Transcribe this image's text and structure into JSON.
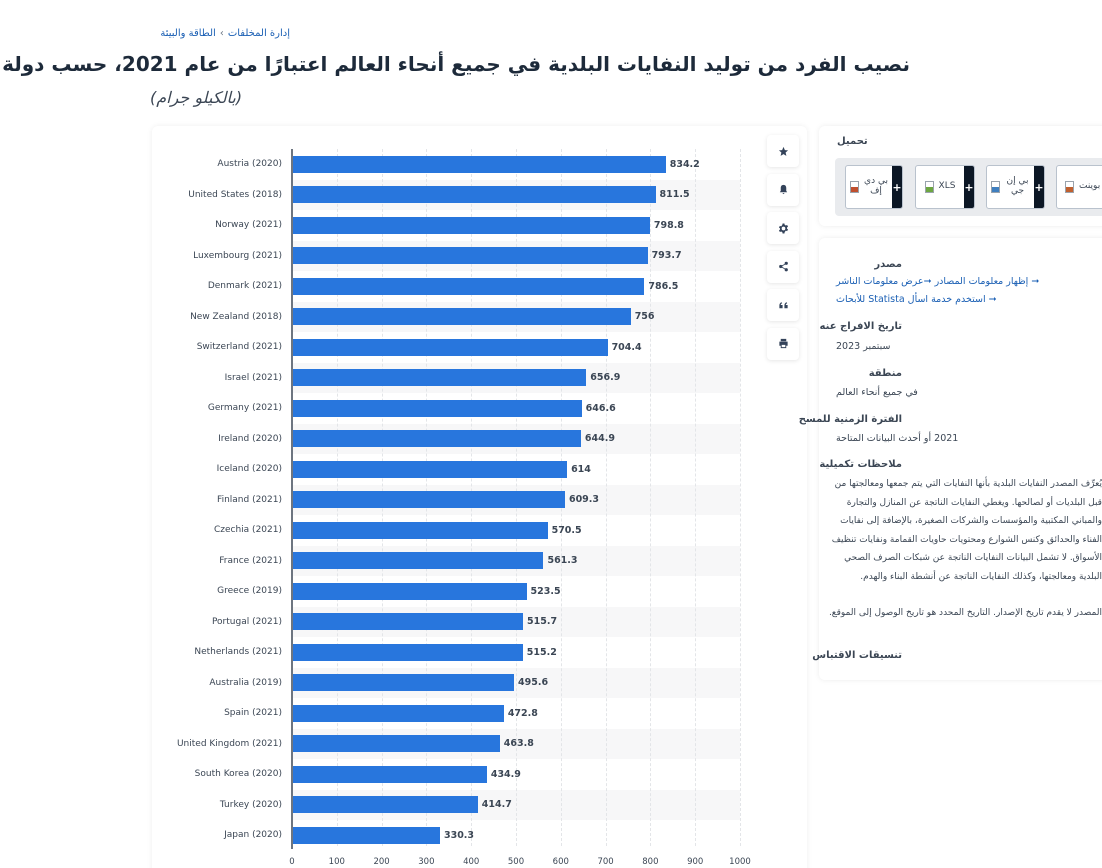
{
  "breadcrumb": {
    "items": [
      "الطاقة والبيئة",
      "إدارة المخلفات"
    ],
    "separator": "›"
  },
  "header": {
    "title": "نصيب الفرد من توليد النفايات البلدية في جميع أنحاء العالم اعتبارًا من عام 2021، حسب دولة مختارة",
    "subtitle": "(بالكيلو جرام)"
  },
  "toolbar": {
    "items": [
      "star-icon",
      "bell-icon",
      "gear-icon",
      "share-icon",
      "quote-icon",
      "print-icon"
    ]
  },
  "download": {
    "title": "تحميل",
    "buttons": [
      {
        "label": "بي دي إف",
        "icon": "pdf-file-icon",
        "color": "#c0502f"
      },
      {
        "label": "XLS",
        "icon": "xls-file-icon",
        "color": "#6da641"
      },
      {
        "label": "بي إن جي",
        "icon": "png-file-icon",
        "color": "#3f7fbf"
      },
      {
        "label": "باور بوينت",
        "icon": "ppt-file-icon",
        "color": "#c0602f"
      }
    ],
    "plus": "+"
  },
  "info": {
    "source_title": "مصدر",
    "links": [
      "عرض معلومات الناشر",
      "إظهار معلومات المصادر",
      "استخدم خدمة اسأل Statista للأبحاث"
    ],
    "arrow": "➞",
    "release_title": "تاريخ الافراج عنه",
    "release_value": "سبتمبر 2023",
    "region_title": "منطقة",
    "region_value": "في جميع أنحاء العالم",
    "period_title": "الفترة الزمنية للمسح",
    "period_value": "2021 أو أحدث البيانات المتاحة",
    "notes_title": "ملاحظات تكميلية",
    "notes_text": "يُعرِّف المصدر النفايات البلدية بأنها النفايات التي يتم جمعها ومعالجتها من قبل البلديات أو لصالحها. ويغطي النفايات الناتجة عن المنازل والتجارة والمباني المكتبية والمؤسسات والشركات الصغيرة، بالإضافة إلى نفايات الفناء والحدائق وكنس الشوارع ومحتويات حاويات القمامة ونفايات تنظيف الأسواق. لا تشمل البيانات النفايات الناتجة عن شبكات الصرف الصحي البلدية ومعالجتها، وكذلك النفايات الناتجة عن أنشطة البناء والهدم.",
    "notes_text2": "المصدر لا يقدم تاريخ الإصدار. التاريخ المحدد هو تاريخ الوصول إلى الموقع.",
    "citation_title": "تنسيقات الاقتباس"
  },
  "chart_data": {
    "type": "bar",
    "orientation": "horizontal",
    "title": "نصيب الفرد من توليد النفايات البلدية في جميع أنحاء العالم اعتبارًا من عام 2021، حسب دولة مختارة",
    "subtitle": "(بالكيلو جرام)",
    "xlabel": "",
    "ylabel": "",
    "xlim": [
      0,
      1000
    ],
    "xticks": [
      "0",
      "100",
      "200",
      "300",
      "400",
      "500",
      "600",
      "700",
      "800",
      "900",
      "1000"
    ],
    "grid": true,
    "bar_color": "#2876dd",
    "categories": [
      "Austria (2020)",
      "United States (2018)",
      "Norway (2021)",
      "Luxembourg (2021)",
      "Denmark (2021)",
      "New Zealand (2018)",
      "Switzerland (2021)",
      "Israel (2021)",
      "Germany (2021)",
      "Ireland (2020)",
      "Iceland (2020)",
      "Finland (2021)",
      "Czechia (2021)",
      "France (2021)",
      "Greece (2019)",
      "Portugal (2021)",
      "Netherlands (2021)",
      "Australia (2019)",
      "Spain (2021)",
      "United Kingdom (2021)",
      "South Korea (2020)",
      "Turkey (2020)",
      "Japan (2020)"
    ],
    "values": [
      834.2,
      811.5,
      798.8,
      793.7,
      786.5,
      756,
      704.4,
      656.9,
      646.6,
      644.9,
      614,
      609.3,
      570.5,
      561.3,
      523.5,
      515.7,
      515.2,
      495.6,
      472.8,
      463.8,
      434.9,
      414.7,
      330.3
    ],
    "value_labels": [
      "834.2",
      "811.5",
      "798.8",
      "793.7",
      "786.5",
      "756",
      "704.4",
      "656.9",
      "646.6",
      "644.9",
      "614",
      "609.3",
      "570.5",
      "561.3",
      "523.5",
      "515.7",
      "515.2",
      "495.6",
      "472.8",
      "463.8",
      "434.9",
      "414.7",
      "330.3"
    ]
  }
}
